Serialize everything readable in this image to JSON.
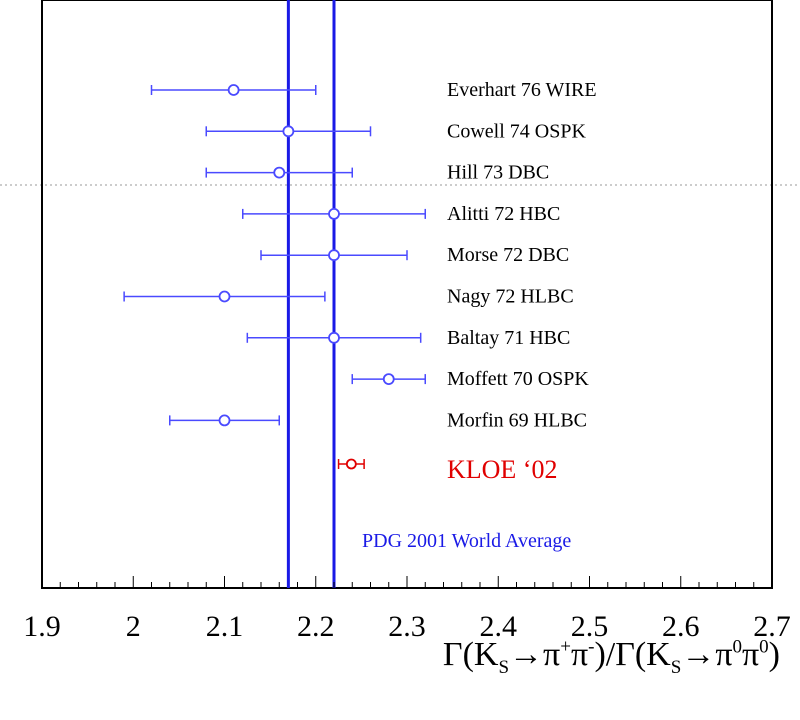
{
  "chart_data": {
    "type": "scatter",
    "title": "",
    "xlabel_parts": {
      "g1": "Γ(K",
      "s1": "S",
      "a1": "→π",
      "p1": "+",
      "b1": "π",
      "p2": "-",
      "c1": ")/Γ(K",
      "s2": "S",
      "d1": "→π",
      "p3": "0",
      "e1": "π",
      "p4": "0",
      "f1": ")"
    },
    "xlim": [
      1.9,
      2.7
    ],
    "x_ticks": [
      "1.9",
      "2",
      "2.1",
      "2.2",
      "2.3",
      "2.4",
      "2.5",
      "2.6",
      "2.7"
    ],
    "y_ticks": [],
    "grid": false,
    "measurements": [
      {
        "label": "Everhart 76 WIRE",
        "value": 2.11,
        "low": 2.02,
        "high": 2.2
      },
      {
        "label": "Cowell 74 OSPK",
        "value": 2.17,
        "low": 2.08,
        "high": 2.26
      },
      {
        "label": "Hill 73 DBC",
        "value": 2.16,
        "low": 2.08,
        "high": 2.24
      },
      {
        "label": "Alitti 72 HBC",
        "value": 2.22,
        "low": 2.12,
        "high": 2.32
      },
      {
        "label": "Morse 72 DBC",
        "value": 2.22,
        "low": 2.14,
        "high": 2.3
      },
      {
        "label": "Nagy 72 HLBC",
        "value": 2.1,
        "low": 1.99,
        "high": 2.21
      },
      {
        "label": "Baltay 71 HBC",
        "value": 2.22,
        "low": 2.125,
        "high": 2.315
      },
      {
        "label": "Moffett 70 OSPK",
        "value": 2.28,
        "low": 2.24,
        "high": 2.32
      },
      {
        "label": "Morfin 69 HLBC",
        "value": 2.1,
        "low": 2.04,
        "high": 2.16
      }
    ],
    "kloe": {
      "label": "KLOE ‘02",
      "value": 2.239,
      "low": 2.225,
      "high": 2.253
    },
    "world_average": {
      "label": "PDG 2001 World Average",
      "low": 2.17,
      "high": 2.22
    },
    "colors": {
      "measurement": "#4a4aff",
      "kloe": "#e00000",
      "world_average": "#1a1ae6",
      "axes": "#000000",
      "dotted_line": "#999999"
    }
  }
}
